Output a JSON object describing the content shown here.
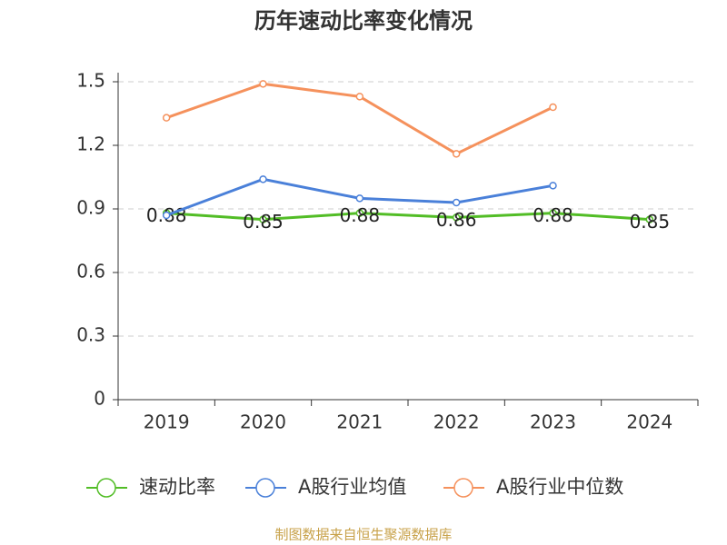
{
  "chart_data": {
    "type": "line",
    "title": "历年速动比率变化情况",
    "categories": [
      "2019",
      "2020",
      "2021",
      "2022",
      "2023",
      "2024"
    ],
    "series": [
      {
        "name": "速动比率",
        "color": "#52bd26",
        "values": [
          0.88,
          0.85,
          0.88,
          0.86,
          0.88,
          0.85
        ],
        "show_labels": true
      },
      {
        "name": "A股行业均值",
        "color": "#4a80d9",
        "values": [
          0.87,
          1.04,
          0.95,
          0.93,
          1.01,
          null
        ],
        "show_labels": false
      },
      {
        "name": "A股行业中位数",
        "color": "#f5915c",
        "values": [
          1.33,
          1.49,
          1.43,
          1.16,
          1.38,
          null
        ],
        "show_labels": false
      }
    ],
    "ylim": [
      0,
      1.5
    ],
    "yticks": [
      0,
      0.3,
      0.6,
      0.9,
      1.2,
      1.5
    ],
    "grid": true,
    "legend": "bottom",
    "source": "制图数据来自恒生聚源数据库"
  }
}
